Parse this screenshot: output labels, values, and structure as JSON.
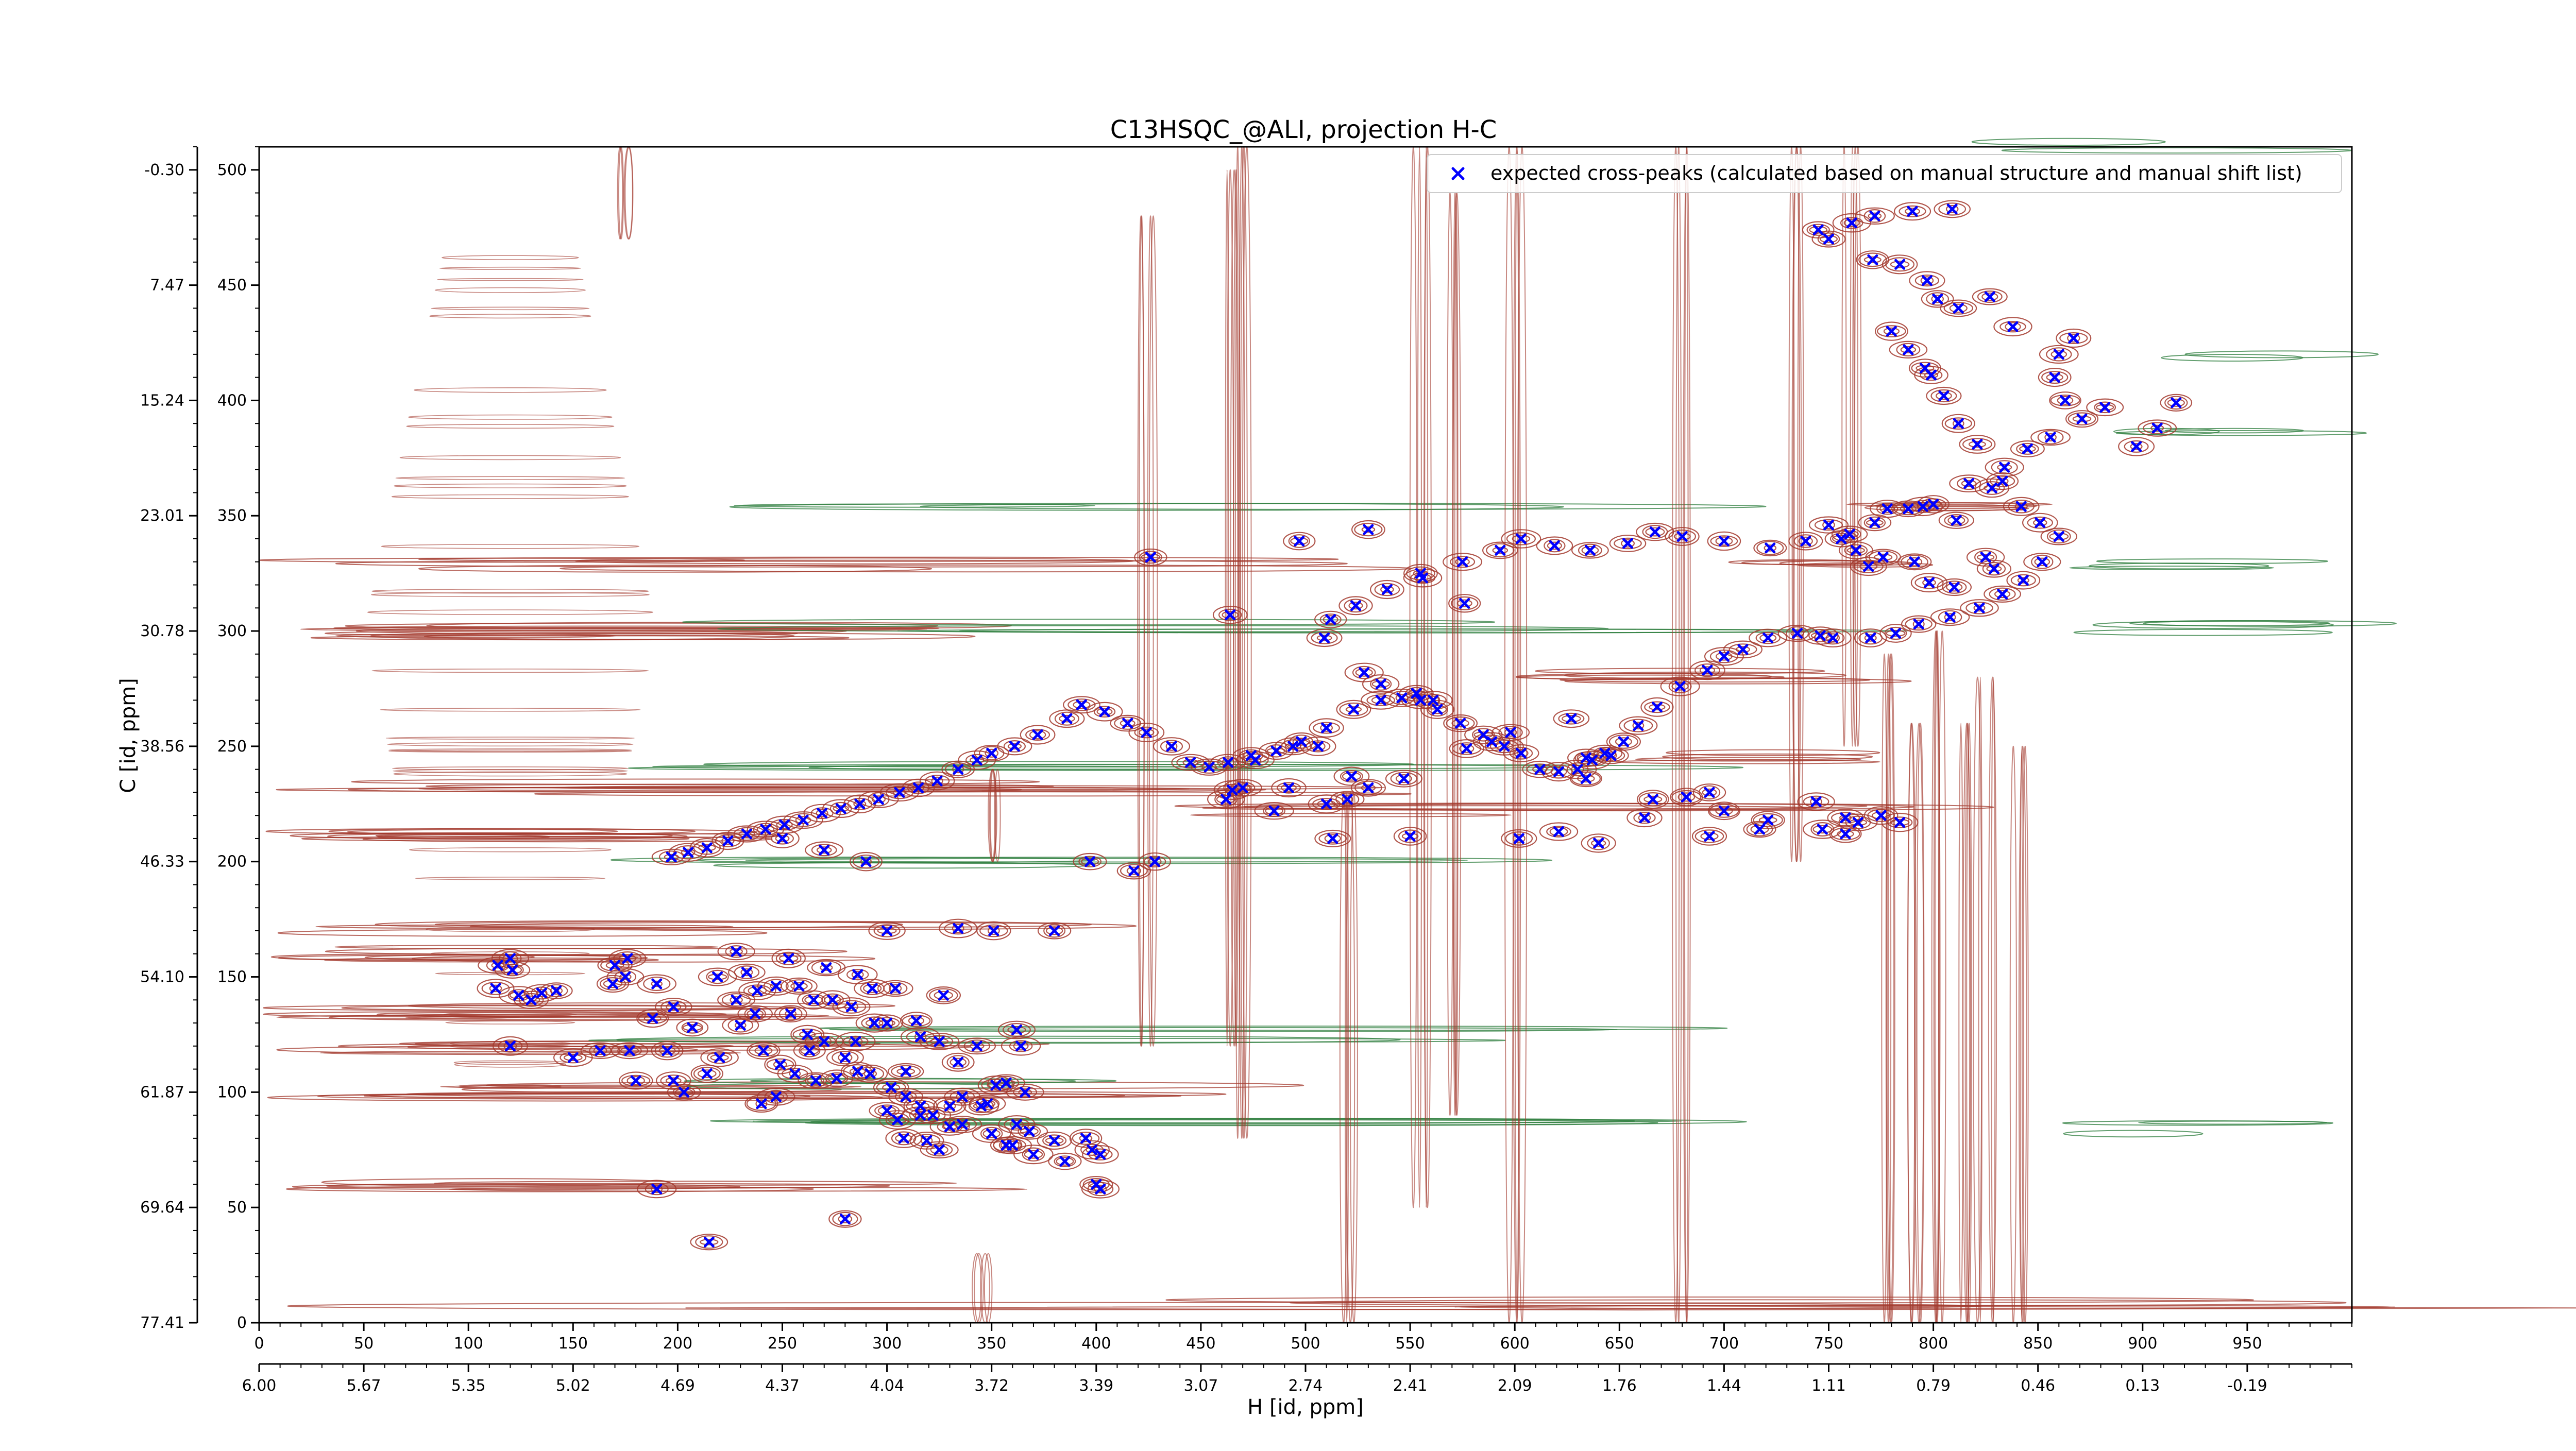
{
  "chart_data": {
    "type": "contour",
    "title": "C13HSQC_@ALI, projection H-C",
    "xlabel": "H [id, ppm]",
    "ylabel": "C [id, ppm]",
    "xlim_points": [
      0,
      1000
    ],
    "ylim_points": [
      0,
      510
    ],
    "x_ticks_points": [
      "0",
      "50",
      "100",
      "150",
      "200",
      "250",
      "300",
      "350",
      "400",
      "450",
      "500",
      "550",
      "600",
      "650",
      "700",
      "750",
      "800",
      "850",
      "900",
      "950"
    ],
    "x_ticks_ppm": [
      "6.00",
      "5.67",
      "5.35",
      "5.02",
      "4.69",
      "4.37",
      "4.04",
      "3.72",
      "3.39",
      "3.07",
      "2.74",
      "2.41",
      "2.09",
      "1.76",
      "1.44",
      "1.11",
      "0.79",
      "0.46",
      "0.13",
      "-0.19"
    ],
    "y_ticks_points": [
      "0",
      "50",
      "100",
      "150",
      "200",
      "250",
      "300",
      "350",
      "400",
      "450",
      "500"
    ],
    "y_ticks_ppm": [
      "77.41",
      "69.64",
      "61.87",
      "54.10",
      "46.33",
      "38.56",
      "30.78",
      "23.01",
      "15.24",
      "7.47",
      "-0.30"
    ],
    "legend": {
      "label": "expected cross-peaks (calculated based on manual structure and manual shift list)",
      "position": "top-right"
    },
    "colors": {
      "positive_contour": "#a33a2e",
      "negative_contour": "#2e7d3e",
      "marker": "#0000ff"
    },
    "grid": false,
    "series": [
      {
        "name": "expected cross-peaks (calculated based on manual structure and manual shift list)",
        "marker": "x",
        "points": [
          [
            114,
            155
          ],
          [
            120,
            158
          ],
          [
            121,
            153
          ],
          [
            113,
            145
          ],
          [
            124,
            142
          ],
          [
            130,
            140
          ],
          [
            135,
            143
          ],
          [
            142,
            144
          ],
          [
            176,
            158
          ],
          [
            170,
            155
          ],
          [
            175,
            150
          ],
          [
            190,
            147
          ],
          [
            169,
            147
          ],
          [
            198,
            137
          ],
          [
            188,
            132
          ],
          [
            207,
            128
          ],
          [
            195,
            118
          ],
          [
            177,
            118
          ],
          [
            163,
            118
          ],
          [
            150,
            115
          ],
          [
            120,
            120
          ],
          [
            180,
            105
          ],
          [
            198,
            105
          ],
          [
            203,
            100
          ],
          [
            214,
            108
          ],
          [
            220,
            115
          ],
          [
            219,
            150
          ],
          [
            233,
            152
          ],
          [
            247,
            146
          ],
          [
            238,
            144
          ],
          [
            258,
            146
          ],
          [
            265,
            140
          ],
          [
            228,
            140
          ],
          [
            237,
            134
          ],
          [
            230,
            129
          ],
          [
            254,
            134
          ],
          [
            262,
            125
          ],
          [
            270,
            122
          ],
          [
            280,
            115
          ],
          [
            263,
            118
          ],
          [
            285,
            122
          ],
          [
            294,
            130
          ],
          [
            283,
            137
          ],
          [
            274,
            140
          ],
          [
            304,
            145
          ],
          [
            300,
            130
          ],
          [
            314,
            131
          ],
          [
            316,
            124
          ],
          [
            325,
            122
          ],
          [
            309,
            109
          ],
          [
            292,
            108
          ],
          [
            302,
            102
          ],
          [
            309,
            98
          ],
          [
            316,
            94
          ],
          [
            322,
            90
          ],
          [
            330,
            94
          ],
          [
            336,
            98
          ],
          [
            345,
            94
          ],
          [
            330,
            85
          ],
          [
            316,
            90
          ],
          [
            305,
            88
          ],
          [
            300,
            92
          ],
          [
            308,
            80
          ],
          [
            319,
            79
          ],
          [
            325,
            75
          ],
          [
            336,
            86
          ],
          [
            350,
            82
          ],
          [
            357,
            77
          ],
          [
            368,
            83
          ],
          [
            348,
            95
          ],
          [
            352,
            103
          ],
          [
            334,
            113
          ],
          [
            343,
            120
          ],
          [
            362,
            127
          ],
          [
            357,
            104
          ],
          [
            362,
            86
          ],
          [
            286,
            109
          ],
          [
            276,
            106
          ],
          [
            266,
            105
          ],
          [
            256,
            108
          ],
          [
            249,
            112
          ],
          [
            241,
            118
          ],
          [
            240,
            95
          ],
          [
            247,
            98
          ],
          [
            190,
            58
          ],
          [
            215,
            35
          ],
          [
            280,
            45
          ],
          [
            290,
            200
          ],
          [
            270,
            205
          ],
          [
            250,
            210
          ],
          [
            300,
            170
          ],
          [
            334,
            171
          ],
          [
            351,
            170
          ],
          [
            327,
            142
          ],
          [
            286,
            151
          ],
          [
            293,
            145
          ],
          [
            271,
            154
          ],
          [
            253,
            158
          ],
          [
            228,
            161
          ],
          [
            380,
            170
          ],
          [
            397,
            200
          ],
          [
            418,
            196
          ],
          [
            428,
            200
          ],
          [
            400,
            60
          ],
          [
            402,
            58
          ],
          [
            398,
            75
          ],
          [
            395,
            80
          ],
          [
            402,
            73
          ],
          [
            385,
            70
          ],
          [
            370,
            73
          ],
          [
            360,
            77
          ],
          [
            380,
            79
          ],
          [
            366,
            100
          ],
          [
            364,
            120
          ],
          [
            426,
            332
          ],
          [
            464,
            307
          ],
          [
            497,
            339
          ],
          [
            530,
            344
          ],
          [
            555,
            325
          ],
          [
            576,
            312
          ],
          [
            462,
            227
          ],
          [
            465,
            231
          ],
          [
            485,
            222
          ],
          [
            520,
            227
          ],
          [
            492,
            232
          ],
          [
            470,
            232
          ],
          [
            476,
            244
          ],
          [
            494,
            250
          ],
          [
            506,
            250
          ],
          [
            510,
            225
          ],
          [
            530,
            232
          ],
          [
            522,
            237
          ],
          [
            547,
            236
          ],
          [
            550,
            211
          ],
          [
            513,
            210
          ],
          [
            602,
            210
          ],
          [
            621,
            213
          ],
          [
            640,
            208
          ],
          [
            662,
            219
          ],
          [
            693,
            211
          ],
          [
            717,
            214
          ],
          [
            747,
            214
          ],
          [
            764,
            217
          ],
          [
            775,
            220
          ],
          [
            758,
            212
          ],
          [
            784,
            217
          ],
          [
            758,
            219
          ],
          [
            744,
            226
          ],
          [
            721,
            218
          ],
          [
            700,
            222
          ],
          [
            693,
            230
          ],
          [
            682,
            228
          ],
          [
            666,
            227
          ],
          [
            634,
            236
          ],
          [
            634,
            245
          ],
          [
            643,
            247
          ],
          [
            627,
            262
          ],
          [
            598,
            256
          ],
          [
            589,
            252
          ],
          [
            577,
            249
          ],
          [
            561,
            270
          ],
          [
            553,
            273
          ],
          [
            536,
            277
          ],
          [
            528,
            282
          ],
          [
            509,
            297
          ],
          [
            512,
            305
          ],
          [
            524,
            311
          ],
          [
            539,
            318
          ],
          [
            556,
            323
          ],
          [
            575,
            330
          ],
          [
            593,
            335
          ],
          [
            603,
            340
          ],
          [
            619,
            337
          ],
          [
            636,
            335
          ],
          [
            654,
            338
          ],
          [
            667,
            343
          ],
          [
            680,
            341
          ],
          [
            700,
            339
          ],
          [
            722,
            336
          ],
          [
            739,
            339
          ],
          [
            750,
            346
          ],
          [
            760,
            342
          ],
          [
            778,
            353
          ],
          [
            795,
            354
          ],
          [
            811,
            348
          ],
          [
            825,
            332
          ],
          [
            829,
            327
          ],
          [
            810,
            319
          ],
          [
            798,
            321
          ],
          [
            791,
            330
          ],
          [
            776,
            332
          ],
          [
            769,
            328
          ],
          [
            763,
            335
          ],
          [
            756,
            340
          ],
          [
            772,
            347
          ],
          [
            788,
            353
          ],
          [
            800,
            355
          ],
          [
            817,
            364
          ],
          [
            828,
            362
          ],
          [
            834,
            371
          ],
          [
            845,
            379
          ],
          [
            856,
            384
          ],
          [
            871,
            392
          ],
          [
            882,
            397
          ],
          [
            897,
            380
          ],
          [
            907,
            388
          ],
          [
            916,
            399
          ],
          [
            863,
            400
          ],
          [
            858,
            410
          ],
          [
            860,
            420
          ],
          [
            867,
            427
          ],
          [
            838,
            432
          ],
          [
            827,
            445
          ],
          [
            812,
            440
          ],
          [
            802,
            444
          ],
          [
            797,
            452
          ],
          [
            784,
            459
          ],
          [
            771,
            461
          ],
          [
            750,
            470
          ],
          [
            745,
            474
          ],
          [
            761,
            477
          ],
          [
            772,
            480
          ],
          [
            790,
            482
          ],
          [
            809,
            483
          ],
          [
            796,
            414
          ],
          [
            799,
            411
          ],
          [
            788,
            422
          ],
          [
            780,
            430
          ],
          [
            805,
            402
          ],
          [
            812,
            390
          ],
          [
            821,
            381
          ],
          [
            833,
            365
          ],
          [
            842,
            354
          ],
          [
            851,
            347
          ],
          [
            860,
            341
          ],
          [
            852,
            330
          ],
          [
            843,
            322
          ],
          [
            833,
            316
          ],
          [
            822,
            310
          ],
          [
            808,
            306
          ],
          [
            793,
            303
          ],
          [
            782,
            299
          ],
          [
            770,
            297
          ],
          [
            752,
            297
          ],
          [
            746,
            298
          ],
          [
            735,
            299
          ],
          [
            721,
            297
          ],
          [
            709,
            292
          ],
          [
            700,
            289
          ],
          [
            692,
            283
          ],
          [
            679,
            276
          ],
          [
            668,
            267
          ],
          [
            659,
            259
          ],
          [
            652,
            252
          ],
          [
            646,
            246
          ],
          [
            637,
            244
          ],
          [
            630,
            240
          ],
          [
            621,
            239
          ],
          [
            612,
            240
          ],
          [
            603,
            247
          ],
          [
            595,
            250
          ],
          [
            585,
            255
          ],
          [
            574,
            260
          ],
          [
            563,
            266
          ],
          [
            555,
            270
          ],
          [
            546,
            271
          ],
          [
            536,
            270
          ],
          [
            523,
            266
          ],
          [
            510,
            258
          ],
          [
            498,
            252
          ],
          [
            486,
            248
          ],
          [
            474,
            246
          ],
          [
            463,
            243
          ],
          [
            454,
            241
          ],
          [
            445,
            243
          ],
          [
            436,
            250
          ],
          [
            424,
            256
          ],
          [
            415,
            260
          ],
          [
            404,
            265
          ],
          [
            393,
            268
          ],
          [
            386,
            262
          ],
          [
            372,
            255
          ],
          [
            361,
            250
          ],
          [
            350,
            247
          ],
          [
            343,
            244
          ],
          [
            334,
            240
          ],
          [
            324,
            235
          ],
          [
            315,
            232
          ],
          [
            306,
            230
          ],
          [
            296,
            227
          ],
          [
            287,
            225
          ],
          [
            278,
            223
          ],
          [
            269,
            221
          ],
          [
            260,
            218
          ],
          [
            251,
            216
          ],
          [
            242,
            214
          ],
          [
            233,
            212
          ],
          [
            224,
            209
          ],
          [
            214,
            206
          ],
          [
            205,
            204
          ],
          [
            197,
            202
          ]
        ]
      }
    ]
  }
}
